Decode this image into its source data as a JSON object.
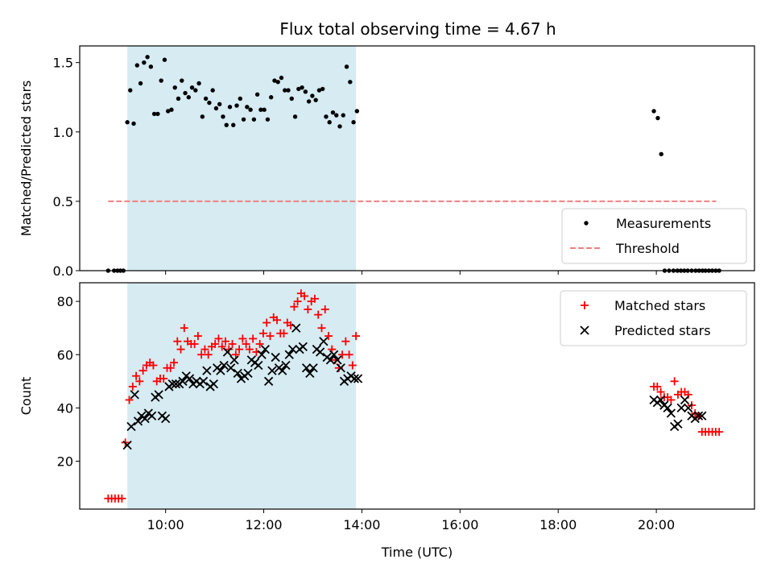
{
  "figure": {
    "title": "Flux total observing time = 4.67 h"
  },
  "chart_data": [
    {
      "type": "scatter",
      "name": "ratio-panel",
      "ylabel": "Matched/Predicted stars",
      "ylim": [
        0,
        1.62
      ],
      "yticks": [
        0,
        0.5,
        1,
        1.5
      ],
      "ytick_labels": [
        "0.0",
        "0.5",
        "1.0",
        "1.5"
      ],
      "xlim": [
        8.25,
        22.0
      ],
      "highlight_span": [
        9.22,
        13.88
      ],
      "threshold": {
        "name": "Threshold",
        "value": 0.5,
        "x_range": [
          8.83,
          21.22
        ]
      },
      "legend": {
        "placement": "lower-right",
        "entries": [
          "Measurements",
          "Threshold"
        ]
      },
      "series": [
        {
          "name": "Measurements",
          "x": [
            8.83,
            8.95,
            9.02,
            9.08,
            9.14,
            9.22,
            9.28,
            9.35,
            9.42,
            9.49,
            9.56,
            9.63,
            9.7,
            9.77,
            9.84,
            9.91,
            9.98,
            10.05,
            10.12,
            10.19,
            10.26,
            10.33,
            10.4,
            10.47,
            10.54,
            10.61,
            10.68,
            10.75,
            10.82,
            10.89,
            10.96,
            11.03,
            11.1,
            11.17,
            11.24,
            11.31,
            11.38,
            11.45,
            11.52,
            11.59,
            11.66,
            11.73,
            11.8,
            11.87,
            11.94,
            12.01,
            12.08,
            12.15,
            12.22,
            12.29,
            12.36,
            12.43,
            12.5,
            12.57,
            12.64,
            12.71,
            12.78,
            12.85,
            12.92,
            12.99,
            13.06,
            13.13,
            13.2,
            13.27,
            13.34,
            13.41,
            13.48,
            13.55,
            13.62,
            13.69,
            13.76,
            13.83,
            13.9,
            19.95,
            20.03,
            20.1,
            20.17,
            20.26,
            20.35,
            20.43,
            20.5,
            20.57,
            20.64,
            20.72,
            20.8,
            20.87,
            20.94,
            21.0,
            21.07,
            21.14,
            21.21,
            21.28
          ],
          "y": [
            0,
            0,
            0,
            0,
            0,
            1.07,
            1.3,
            1.06,
            1.48,
            1.35,
            1.5,
            1.54,
            1.47,
            1.13,
            1.13,
            1.37,
            1.52,
            1.15,
            1.16,
            1.32,
            1.24,
            1.37,
            1.28,
            1.25,
            1.32,
            1.3,
            1.35,
            1.11,
            1.24,
            1.21,
            1.3,
            1.17,
            1.2,
            1.11,
            1.05,
            1.18,
            1.05,
            1.19,
            1.24,
            1.09,
            1.18,
            1.16,
            1.09,
            1.27,
            1.16,
            1.16,
            1.09,
            1.25,
            1.37,
            1.36,
            1.39,
            1.3,
            1.3,
            1.24,
            1.11,
            1.31,
            1.32,
            1.29,
            1.22,
            1.26,
            1.23,
            1.3,
            1.31,
            1.11,
            1.07,
            1.14,
            1.12,
            1.04,
            1.12,
            1.47,
            1.36,
            1.07,
            1.15,
            1.15,
            1.1,
            0.84,
            0,
            0,
            0,
            0,
            0,
            0,
            0,
            0,
            0,
            0,
            0,
            0,
            0,
            0,
            0,
            0
          ]
        }
      ]
    },
    {
      "type": "scatter",
      "name": "count-panel",
      "xlabel": "Time (UTC)",
      "ylabel": "Count",
      "ylim": [
        2,
        87
      ],
      "yticks": [
        20,
        40,
        60,
        80
      ],
      "ytick_labels": [
        "20",
        "40",
        "60",
        "80"
      ],
      "xlim": [
        8.25,
        22.0
      ],
      "xticks": [
        10,
        12,
        14,
        16,
        18,
        20
      ],
      "xtick_labels": [
        "10:00",
        "12:00",
        "14:00",
        "16:00",
        "18:00",
        "20:00"
      ],
      "highlight_span": [
        9.22,
        13.88
      ],
      "legend": {
        "placement": "upper-right",
        "entries": [
          "Matched stars",
          "Predicted stars"
        ]
      },
      "series": [
        {
          "name": "Matched stars",
          "x": [
            8.83,
            8.9,
            8.97,
            9.04,
            9.11,
            9.18,
            9.26,
            9.33,
            9.4,
            9.47,
            9.54,
            9.61,
            9.68,
            9.75,
            9.82,
            9.89,
            9.96,
            10.03,
            10.1,
            10.17,
            10.24,
            10.31,
            10.38,
            10.45,
            10.52,
            10.59,
            10.66,
            10.73,
            10.8,
            10.87,
            10.94,
            11.01,
            11.08,
            11.15,
            11.22,
            11.29,
            11.36,
            11.43,
            11.5,
            11.57,
            11.64,
            11.71,
            11.78,
            11.85,
            11.92,
            11.99,
            12.06,
            12.13,
            12.2,
            12.27,
            12.34,
            12.41,
            12.48,
            12.55,
            12.62,
            12.69,
            12.76,
            12.83,
            12.9,
            12.97,
            13.04,
            13.11,
            13.18,
            13.25,
            13.32,
            13.39,
            13.46,
            13.53,
            13.6,
            13.67,
            13.74,
            13.81,
            13.88,
            19.95,
            20.02,
            20.09,
            20.16,
            20.23,
            20.3,
            20.37,
            20.44,
            20.51,
            20.58,
            20.65,
            20.72,
            20.79,
            20.86,
            20.93,
            21.0,
            21.07,
            21.14,
            21.21,
            21.28
          ],
          "y": [
            6,
            6,
            6,
            6,
            6,
            27,
            43,
            48,
            52,
            50,
            54,
            56,
            57,
            56,
            50,
            51,
            51,
            55,
            55,
            57,
            65,
            62,
            70,
            65,
            64,
            64,
            67,
            60,
            62,
            60,
            63,
            64,
            66,
            63,
            65,
            62,
            64,
            60,
            62,
            66,
            64,
            62,
            66,
            61,
            64,
            68,
            72,
            67,
            74,
            73,
            68,
            68,
            72,
            71,
            78,
            80,
            83,
            82,
            77,
            80,
            81,
            75,
            70,
            77,
            67,
            62,
            58,
            55,
            60,
            65,
            60,
            56,
            67,
            48,
            48,
            46,
            44,
            44,
            43,
            50,
            45,
            46,
            46,
            45,
            41,
            38,
            37,
            31,
            31,
            31,
            31,
            31,
            31
          ]
        },
        {
          "name": "Predicted stars",
          "x": [
            9.22,
            9.3,
            9.37,
            9.44,
            9.51,
            9.58,
            9.65,
            9.72,
            9.79,
            9.86,
            9.93,
            10.0,
            10.07,
            10.14,
            10.21,
            10.28,
            10.35,
            10.42,
            10.49,
            10.56,
            10.63,
            10.7,
            10.77,
            10.84,
            10.91,
            10.98,
            11.05,
            11.12,
            11.19,
            11.26,
            11.33,
            11.4,
            11.47,
            11.54,
            11.61,
            11.68,
            11.75,
            11.82,
            11.89,
            11.96,
            12.03,
            12.1,
            12.17,
            12.24,
            12.31,
            12.38,
            12.45,
            12.52,
            12.59,
            12.66,
            12.73,
            12.8,
            12.87,
            12.94,
            13.01,
            13.08,
            13.15,
            13.22,
            13.29,
            13.36,
            13.43,
            13.5,
            13.57,
            13.64,
            13.71,
            13.78,
            13.85,
            13.92,
            19.95,
            20.02,
            20.09,
            20.16,
            20.23,
            20.3,
            20.37,
            20.44,
            20.51,
            20.58,
            20.65,
            20.72,
            20.79,
            20.86,
            20.93
          ],
          "y": [
            26,
            33,
            45,
            35,
            37,
            36,
            38,
            37,
            44,
            45,
            37,
            36,
            48,
            49,
            49,
            49,
            50,
            52,
            51,
            49,
            50,
            49,
            50,
            54,
            48,
            49,
            55,
            54,
            56,
            61,
            55,
            58,
            53,
            51,
            52,
            53,
            58,
            57,
            56,
            60,
            62,
            50,
            54,
            59,
            55,
            54,
            56,
            60,
            62,
            70,
            62,
            63,
            55,
            53,
            55,
            62,
            61,
            65,
            59,
            58,
            60,
            58,
            55,
            50,
            51,
            52,
            51,
            51,
            43,
            42,
            43,
            41,
            40,
            38,
            33,
            34,
            40,
            43,
            40,
            37,
            36,
            37,
            37
          ]
        }
      ]
    }
  ]
}
